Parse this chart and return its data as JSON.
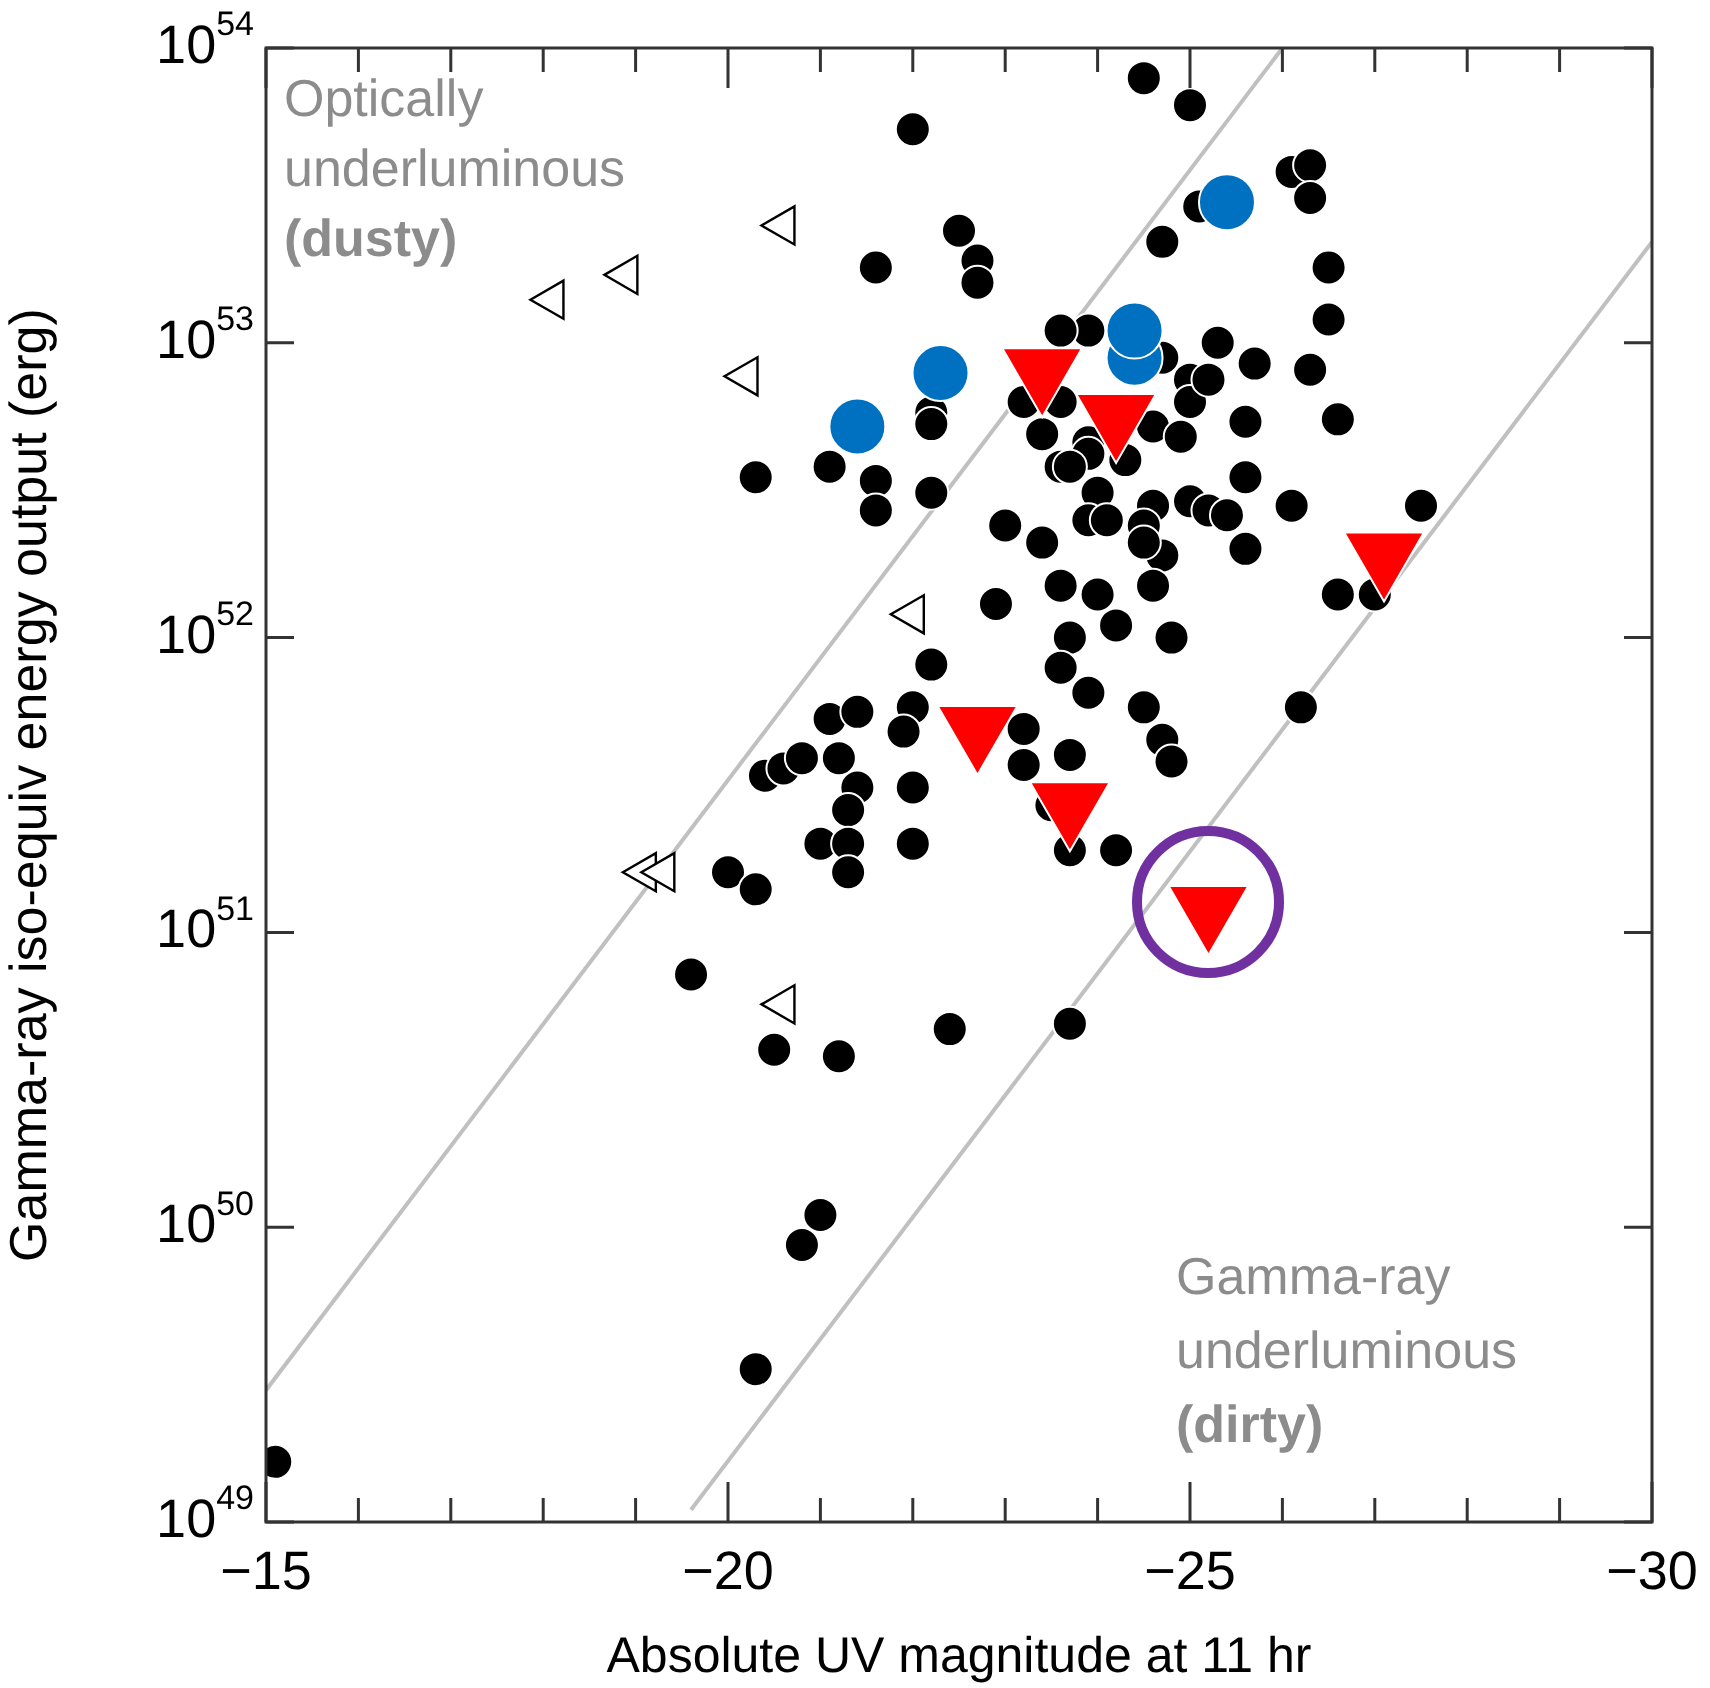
{
  "chart_data": {
    "type": "scatter",
    "xlabel": "Absolute UV magnitude at 11 hr",
    "ylabel": "Gamma-ray iso-equiv energy output (erg)",
    "log": "y",
    "grid": false,
    "legend": false,
    "xlim": [
      -15,
      -30
    ],
    "ylim": [
      1e+49,
      1e+54
    ],
    "xticks": [
      -15,
      {
        "value": -16,
        "label": null
      },
      {
        "value": -17,
        "label": null
      },
      {
        "value": -18,
        "label": null
      },
      {
        "value": -19,
        "label": null
      },
      -20,
      {
        "value": -21,
        "label": null
      },
      {
        "value": -22,
        "label": null
      },
      {
        "value": -23,
        "label": null
      },
      {
        "value": -24,
        "label": null
      },
      -25,
      {
        "value": -26,
        "label": null
      },
      {
        "value": -27,
        "label": null
      },
      {
        "value": -28,
        "label": null
      },
      {
        "value": -29,
        "label": null
      },
      -30
    ],
    "yticks": [
      {
        "value": 1e+49,
        "label": "10$^{49}$"
      },
      {
        "value": 1e+50,
        "label": "10$^{50}$"
      },
      {
        "value": 1e+51,
        "label": "10$^{51}$"
      },
      {
        "value": 1e+52,
        "label": "10$^{52}$"
      },
      {
        "value": 1e+53,
        "label": "10$^{53}$"
      },
      {
        "value": 1e+54,
        "label": "10$^{54}$"
      }
    ],
    "annotations": [
      "Optically\nunderluminous\n(dusty)",
      "Gamma-ray\nunderluminous\n(dirty)"
    ],
    "series": [
      {
        "type": "line",
        "color": "#c0c0c0",
        "x": [
          -15,
          -26.0
        ],
        "values": [
          2.8e+49,
          1e+54
        ]
      },
      {
        "type": "line",
        "color": "#c0c0c0",
        "x": [
          -19.6,
          -30
        ],
        "values": [
          1.1e+49,
          2.2e+53
        ]
      },
      {
        "color": "#000000",
        "marker": "circle",
        "x": [
          -24.5,
          -25.0,
          -22.0,
          -22.5,
          -22.7,
          -22.7,
          -21.6,
          -25.1,
          -24.7,
          -23.9,
          -23.6,
          -24.7,
          -25.0,
          -23.2,
          -23.6,
          -22.2,
          -22.2,
          -25.0,
          -23.4,
          -23.9,
          -23.9,
          -24.6,
          -24.9,
          -23.6,
          -23.7,
          -24.3,
          -20.3,
          -21.1,
          -21.6,
          -21.6,
          -22.2,
          -24.0,
          -23.9,
          -24.1,
          -24.6,
          -24.5,
          -25.0,
          -23.0,
          -23.4,
          -24.7,
          -26.1,
          -26.3,
          -26.3,
          -26.5,
          -26.5,
          -25.3,
          -25.7,
          -25.2,
          -26.3,
          -25.6,
          -26.6,
          -25.6,
          -25.2,
          -25.4,
          -26.1,
          -24.5,
          -25.6,
          -27.5,
          -26.6,
          -27.0,
          -24.0,
          -24.6,
          -24.2,
          -24.8,
          -22.9,
          -23.6,
          -23.7,
          -23.6,
          -23.9,
          -22.2,
          -24.5,
          -24.7,
          -24.8,
          -22.0,
          -21.9,
          -21.1,
          -21.4,
          -20.4,
          -20.6,
          -20.8,
          -21.2,
          -21.4,
          -21.3,
          -22.0,
          -23.2,
          -23.2,
          -23.7,
          -23.5,
          -21.0,
          -21.3,
          -21.3,
          -22.0,
          -23.7,
          -24.2,
          -20.0,
          -20.3,
          -19.6,
          -22.4,
          -23.7,
          -20.5,
          -21.2,
          -21.0,
          -20.8,
          -20.3,
          -15.1,
          -26.2
        ],
        "values": [
          7.9e+53,
          6.4e+53,
          5.3e+53,
          2.4e+53,
          1.9e+53,
          1.6e+53,
          1.8e+53,
          2.9e+53,
          2.2e+53,
          1.1e+53,
          1.1e+53,
          8.9e+52,
          7.5e+52,
          6.3e+52,
          6.3e+52,
          5.8e+52,
          5.3e+52,
          6.3e+52,
          4.9e+52,
          4.6e+52,
          4.2e+52,
          5.2e+52,
          4.8e+52,
          3.8e+52,
          3.8e+52,
          4e+52,
          3.5e+52,
          3.8e+52,
          3.4e+52,
          2.7e+52,
          3.1e+52,
          3.1e+52,
          2.5e+52,
          2.5e+52,
          2.8e+52,
          2.4e+52,
          2.9e+52,
          2.4e+52,
          2.1e+52,
          1.9e+52,
          3.8e+53,
          4e+53,
          3.1e+53,
          1.8e+53,
          1.2e+53,
          1e+53,
          8.5e+52,
          7.5e+52,
          8.1e+52,
          5.4e+52,
          5.5e+52,
          3.5e+52,
          2.7e+52,
          2.6e+52,
          2.8e+52,
          2.1e+52,
          2e+52,
          2.8e+52,
          1.4e+52,
          1.4e+52,
          1.4e+52,
          1.5e+52,
          1.1e+52,
          1e+52,
          1.3e+52,
          1.5e+52,
          1e+52,
          7.9e+51,
          6.5e+51,
          8.1e+51,
          5.8e+51,
          4.5e+51,
          3.8e+51,
          5.8e+51,
          4.8e+51,
          5.3e+51,
          5.6e+51,
          3.4e+51,
          3.6e+51,
          3.9e+51,
          3.9e+51,
          3.1e+51,
          2.6e+51,
          3.1e+51,
          4.9e+51,
          3.7e+51,
          4e+51,
          2.7e+51,
          2e+51,
          2e+51,
          1.6e+51,
          2e+51,
          1.9e+51,
          1.9e+51,
          1.6e+51,
          1.4e+51,
          7.2e+50,
          4.7e+50,
          4.9e+50,
          4e+50,
          3.8e+50,
          1.1e+50,
          8.7e+49,
          3.3e+49,
          1.6e+49,
          5.8e+51
        ]
      },
      {
        "color": "#0070c0",
        "marker": "circle",
        "x": [
          -21.4,
          -22.3,
          -24.4,
          -24.4,
          -25.4
        ],
        "values": [
          5.2e+52,
          7.9e+52,
          8.9e+52,
          1.1e+53,
          3e+53
        ]
      },
      {
        "color": "#ff0000",
        "marker": "triangle",
        "x": [
          -23.4,
          -24.2,
          -27.1,
          -22.7,
          -23.7,
          -25.2
        ],
        "values": [
          8e+52,
          5.6e+52,
          1.9e+52,
          4.9e+51,
          2.7e+51,
          1.2e+51
        ]
      },
      {
        "color": "#000000",
        "marker": "triangle",
        "x": [
          -20.6,
          -18.9,
          -18.1,
          -20.2,
          -22.0,
          -19.1,
          -19.3,
          -20.6
        ],
        "values": [
          2.5e+53,
          1.7e+53,
          1.4e+53,
          7.7e+52,
          1.2e+52,
          1.6e+51,
          1.6e+51,
          5.7e+50
        ]
      }
    ]
  }
}
